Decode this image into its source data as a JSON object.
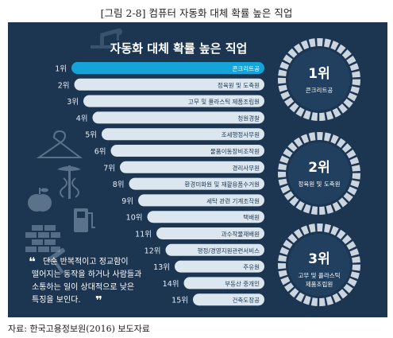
{
  "caption": "[그림 2-8] 컴퓨터 자동화 대체 확률 높은 직업",
  "source": "자료: 한국고용정보원(2016) 보도자료",
  "colors": {
    "background": "#1c3652",
    "bar": "#dbe6ee",
    "bar_top": "#16a4d8",
    "rank_text": "#e6eef4",
    "circle_ring": "#dfe7ee"
  },
  "chart_data": {
    "type": "bar",
    "title": "자동화 대체 확률 높은 직업",
    "rank_labels": [
      "1위",
      "2위",
      "3위",
      "4위",
      "5위",
      "6위",
      "7위",
      "8위",
      "9위",
      "10위",
      "11위",
      "12위",
      "13위",
      "14위",
      "15위"
    ],
    "categories": [
      "콘크리트공",
      "정육원 및 도축원",
      "고무 및 플라스틱 제품조립원",
      "청원경찰",
      "조세행정사무원",
      "물품이동장비조작원",
      "경리사무원",
      "환경미화원 및 재활용품수거원",
      "세탁 관련 기계조작원",
      "택배원",
      "과수작물재배원",
      "행정/경영지원관련서비스",
      "주유원",
      "부동산 중개인",
      "건축도장공"
    ],
    "quote": [
      "단순 반복적이고 정교함이",
      "떨어지는 동작을 하거나 사람들과",
      "소통하는 일이 상대적으로 낮은",
      "특징을 보인다."
    ],
    "top3": [
      {
        "rank": "1위",
        "name_lines": [
          "콘크리트공"
        ]
      },
      {
        "rank": "2위",
        "name_lines": [
          "정육원 및 도축원"
        ]
      },
      {
        "rank": "3위",
        "name_lines": [
          "고무 및 플라스틱",
          "제품조립원"
        ]
      }
    ],
    "icons": [
      "robot-arm-icon",
      "hanger-icon",
      "caduceus-icon",
      "apple-icon",
      "fuel-pump-icon",
      "brick-wall-icon"
    ]
  }
}
